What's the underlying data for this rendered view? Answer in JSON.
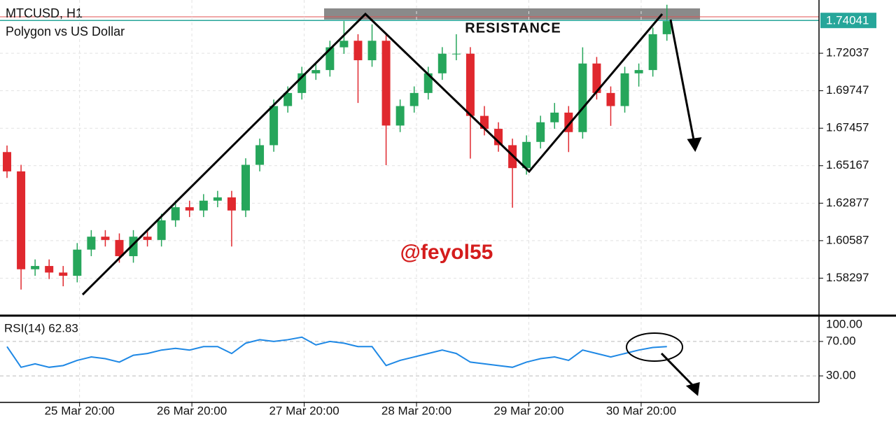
{
  "chart_data": [
    {
      "type": "candlestick",
      "title": "MTCUSD, H1",
      "subtitle": "Polygon vs US Dollar",
      "annotations": [
        "RESISTANCE",
        "@feyol55"
      ],
      "x": [
        1.5,
        4.5,
        7.5,
        10.5,
        13.5,
        16.5,
        19.5,
        22.5,
        25.5,
        28.5,
        31.5,
        34.5,
        37.5,
        40.5,
        43.5,
        46.5,
        49.5,
        52.5,
        55.5,
        58.5,
        61.5,
        64.5,
        67.5,
        70.5,
        73.5,
        76.5,
        79.5,
        82.5,
        85.5,
        88.5,
        91.5,
        94.5,
        97.5,
        100.5,
        103.5,
        106.5,
        109.5,
        112.5,
        115.5,
        118.5,
        121.5,
        124.5,
        127.5,
        130.5,
        133.5,
        136.5,
        139.5,
        142.5
      ],
      "open": [
        1.66,
        1.6482,
        1.5884,
        1.5904,
        1.5864,
        1.5844,
        1.6004,
        1.6083,
        1.6063,
        1.5964,
        1.6083,
        1.6063,
        1.6183,
        1.6263,
        1.6243,
        1.6303,
        1.6323,
        1.6243,
        1.6522,
        1.6642,
        1.6881,
        1.6961,
        1.7081,
        1.7101,
        1.724,
        1.728,
        1.7161,
        1.728,
        1.6762,
        1.6881,
        1.6961,
        1.7081,
        1.7201,
        1.7201,
        1.6821,
        1.6742,
        1.6642,
        1.6502,
        1.6662,
        1.6782,
        1.6841,
        1.6722,
        1.7141,
        1.6961,
        1.6881,
        1.7081,
        1.7101,
        1.732
      ],
      "high": [
        1.664,
        1.6522,
        1.5944,
        1.5944,
        1.5904,
        1.6044,
        1.6123,
        1.6123,
        1.6103,
        1.6123,
        1.6123,
        1.6223,
        1.6303,
        1.6303,
        1.6343,
        1.6363,
        1.6363,
        1.6562,
        1.6682,
        1.6921,
        1.7001,
        1.7121,
        1.7141,
        1.728,
        1.74,
        1.732,
        1.738,
        1.732,
        1.6921,
        1.7001,
        1.7121,
        1.7241,
        1.732,
        1.7241,
        1.6881,
        1.6782,
        1.6682,
        1.6702,
        1.6822,
        1.69,
        1.6881,
        1.724,
        1.7181,
        1.7001,
        1.7121,
        1.7141,
        1.736,
        1.75
      ],
      "low": [
        1.6442,
        1.576,
        1.5844,
        1.5824,
        1.578,
        1.5804,
        1.5964,
        1.6023,
        1.5924,
        1.5924,
        1.6023,
        1.6023,
        1.6143,
        1.6203,
        1.6203,
        1.6263,
        1.6023,
        1.6203,
        1.6482,
        1.6602,
        1.6841,
        1.6921,
        1.7041,
        1.7061,
        1.72,
        1.69,
        1.7121,
        1.652,
        1.6722,
        1.6841,
        1.6921,
        1.7041,
        1.7161,
        1.656,
        1.6702,
        1.6602,
        1.626,
        1.6462,
        1.6622,
        1.6742,
        1.66,
        1.6682,
        1.6921,
        1.676,
        1.6841,
        1.7,
        1.7061,
        1.728
      ],
      "close": [
        1.6482,
        1.5884,
        1.5904,
        1.5864,
        1.5844,
        1.6004,
        1.6083,
        1.6063,
        1.5964,
        1.6083,
        1.6063,
        1.6183,
        1.6263,
        1.6243,
        1.6303,
        1.6323,
        1.6243,
        1.6522,
        1.6642,
        1.6881,
        1.6961,
        1.7081,
        1.7101,
        1.724,
        1.728,
        1.7161,
        1.728,
        1.6762,
        1.6881,
        1.6961,
        1.7081,
        1.7201,
        1.7201,
        1.6821,
        1.6742,
        1.6642,
        1.6502,
        1.6662,
        1.6782,
        1.6841,
        1.6722,
        1.7141,
        1.6961,
        1.6881,
        1.7081,
        1.7101,
        1.732,
        1.74
      ],
      "up_color": "#26a65b",
      "down_color": "#e0282e",
      "last_price": 1.74041,
      "xlim": [
        0,
        175
      ],
      "xticks": [
        {
          "value": 17,
          "label": "25 Mar 20:00"
        },
        {
          "value": 41,
          "label": "26 Mar 20:00"
        },
        {
          "value": 65,
          "label": "27 Mar 20:00"
        },
        {
          "value": 89,
          "label": "28 Mar 20:00"
        },
        {
          "value": 113,
          "label": "29 Mar 20:00"
        },
        {
          "value": 137,
          "label": "30 Mar 20:00"
        }
      ],
      "ylim": [
        1.5605,
        1.7529
      ],
      "yticks": [
        1.58297,
        1.60587,
        1.62877,
        1.65167,
        1.67457,
        1.69747,
        1.72037
      ],
      "grid": true
    },
    {
      "type": "line",
      "title": "RSI(14) 62.83",
      "color": "#1e88e5",
      "values": [
        64,
        40,
        44,
        40,
        42,
        48,
        52,
        50,
        46,
        54,
        56,
        60,
        62,
        60,
        64,
        64,
        56,
        68,
        72,
        70,
        72,
        75,
        66,
        70,
        68,
        64,
        64,
        42,
        48,
        52,
        56,
        60,
        56,
        46,
        44,
        42,
        40,
        46,
        50,
        52,
        48,
        60,
        56,
        52,
        56,
        60,
        63,
        64
      ],
      "ylim": [
        0,
        100
      ],
      "yticks": [
        {
          "value": 100,
          "label": "100.00"
        },
        {
          "value": 70,
          "label": "70.00"
        },
        {
          "value": 30,
          "label": "30.00"
        }
      ]
    }
  ]
}
